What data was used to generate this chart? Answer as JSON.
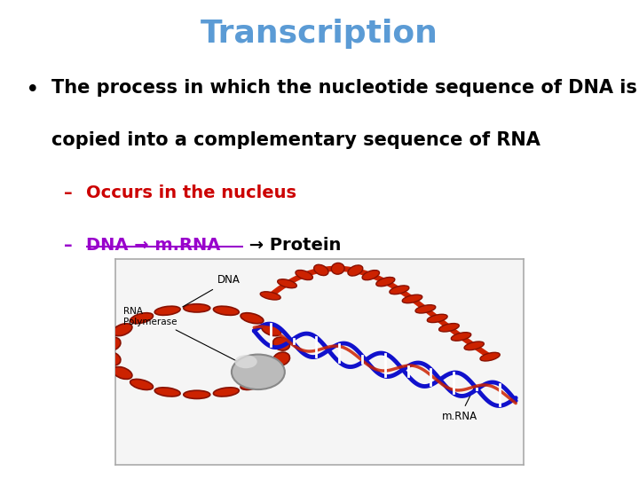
{
  "title": "Transcription",
  "title_color": "#5B9BD5",
  "title_fontsize": 26,
  "title_fontweight": "bold",
  "bg_color": "#FFFFFF",
  "bullet_line1": "The process in which the nucleotide sequence of DNA is",
  "bullet_line2": "copied into a complementary sequence of RNA",
  "bullet_color": "#000000",
  "bullet_fontsize": 15,
  "sub1_text": "Occurs in the nucleus",
  "sub1_color": "#CC0000",
  "sub1_fontsize": 14,
  "sub2_dna": "DNA → m.RNA",
  "sub2_arrow": " → Protein",
  "sub2_underline_color": "#9900CC",
  "sub2_arrow_color": "#000000",
  "sub2_fontsize": 14,
  "image_border_color": "#AAAAAA",
  "image_bg": "#F5F5F5"
}
